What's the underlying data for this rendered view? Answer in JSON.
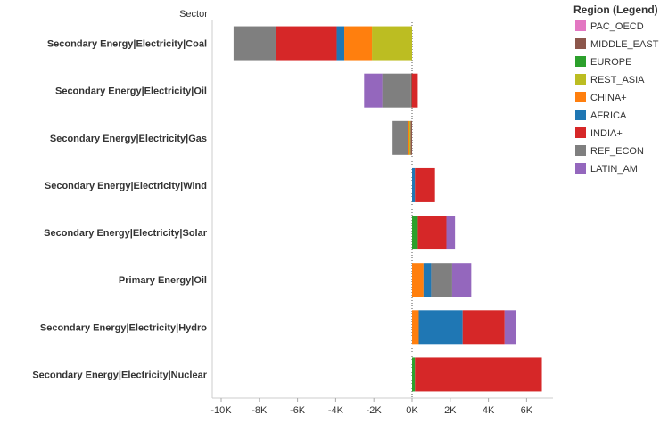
{
  "chart_data": {
    "type": "bar",
    "orientation": "horizontal",
    "stacked": true,
    "row_header": "Sector",
    "categories": [
      "Secondary Energy|Electricity|Coal",
      "Secondary Energy|Electricity|Oil",
      "Secondary Energy|Electricity|Gas",
      "Secondary Energy|Electricity|Wind",
      "Secondary Energy|Electricity|Solar",
      "Primary Energy|Oil",
      "Secondary Energy|Electricity|Hydro",
      "Secondary Energy|Electricity|Nuclear"
    ],
    "series": [
      {
        "name": "PAC_OECD",
        "color": "#E377C2",
        "values": [
          0,
          0,
          0,
          0,
          0,
          0,
          0,
          0
        ]
      },
      {
        "name": "MIDDLE_EAST",
        "color": "#8C564B",
        "values": [
          0,
          -60,
          -80,
          0,
          0,
          0,
          0,
          0
        ]
      },
      {
        "name": "EUROPE",
        "color": "#2CA02C",
        "values": [
          0,
          0,
          0,
          0,
          300,
          0,
          0,
          150
        ]
      },
      {
        "name": "REST_ASIA",
        "color": "#BCBD22",
        "values": [
          -2100,
          0,
          -60,
          0,
          0,
          0,
          0,
          0
        ]
      },
      {
        "name": "CHINA+",
        "color": "#FF7F0E",
        "values": [
          -1450,
          0,
          -80,
          0,
          0,
          600,
          350,
          0
        ]
      },
      {
        "name": "AFRICA",
        "color": "#1F77B4",
        "values": [
          -400,
          0,
          0,
          150,
          0,
          400,
          2300,
          0
        ]
      },
      {
        "name": "INDIA+",
        "color": "#D62728",
        "values": [
          -3200,
          300,
          0,
          1050,
          1500,
          0,
          2200,
          6650
        ]
      },
      {
        "name": "REF_ECON",
        "color": "#7F7F7F",
        "values": [
          -2200,
          -1500,
          -800,
          0,
          0,
          1100,
          0,
          0
        ]
      },
      {
        "name": "LATIN_AM",
        "color": "#9467BD",
        "values": [
          0,
          -950,
          0,
          0,
          450,
          1000,
          600,
          0
        ]
      }
    ],
    "legend_order": [
      "PAC_OECD",
      "MIDDLE_EAST",
      "EUROPE",
      "REST_ASIA",
      "CHINA+",
      "AFRICA",
      "INDIA+",
      "REF_ECON",
      "LATIN_AM"
    ],
    "legend_title": "Region (Legend)",
    "legend_position": "right",
    "xlim": [
      -10000,
      6500
    ],
    "x_ticks": [
      -10000,
      -8000,
      -6000,
      -4000,
      -2000,
      0,
      2000,
      4000,
      6000
    ],
    "x_tick_labels": [
      "-10K",
      "-8K",
      "-6K",
      "-4K",
      "-2K",
      "0K",
      "2K",
      "4K",
      "6K"
    ],
    "xlabel": "",
    "ylabel": "",
    "grid": false,
    "zero_line": "dotted"
  }
}
